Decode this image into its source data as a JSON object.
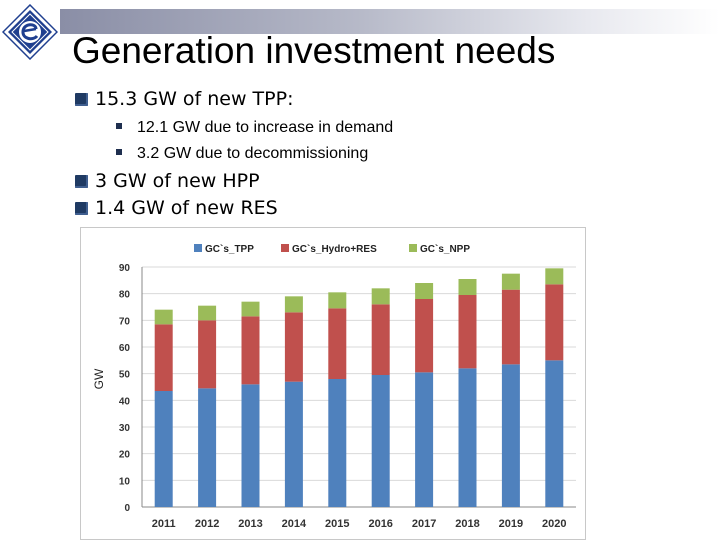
{
  "slide": {
    "title": "Generation investment needs",
    "bullets": [
      {
        "text": "15.3 GW of new TPP:",
        "sub": [
          "12.1 GW due to increase in demand",
          "3.2 GW due to decommissioning"
        ]
      },
      {
        "text": "3 GW of new HPP"
      },
      {
        "text": "1.4 GW of new RES"
      }
    ]
  },
  "colors": {
    "tpp": "#4f81bd",
    "hydro_res": "#c0504d",
    "npp": "#9bbb59",
    "title_bar": "#8a8ea6",
    "logo": "#1f3f8f"
  },
  "chart_data": {
    "type": "bar",
    "stacked": true,
    "categories": [
      "2011",
      "2012",
      "2013",
      "2014",
      "2015",
      "2016",
      "2017",
      "2018",
      "2019",
      "2020"
    ],
    "series": [
      {
        "name": "GC`s_TPP",
        "values": [
          43.5,
          44.5,
          46,
          47,
          48,
          49.5,
          50.5,
          52,
          53.5,
          55
        ]
      },
      {
        "name": "GC`s_Hydro+RES",
        "values": [
          25,
          25.5,
          25.5,
          26,
          26.5,
          26.5,
          27.5,
          27.5,
          28,
          28.5
        ]
      },
      {
        "name": "GC`s_NPP",
        "values": [
          5.5,
          5.5,
          5.5,
          6,
          6,
          6,
          6,
          6,
          6,
          6
        ]
      }
    ],
    "ylabel": "GW",
    "xlabel": "",
    "ylim": [
      0,
      90
    ],
    "yticks": [
      0,
      10,
      20,
      30,
      40,
      50,
      60,
      70,
      80,
      90
    ],
    "grid": true,
    "legend": "top"
  }
}
